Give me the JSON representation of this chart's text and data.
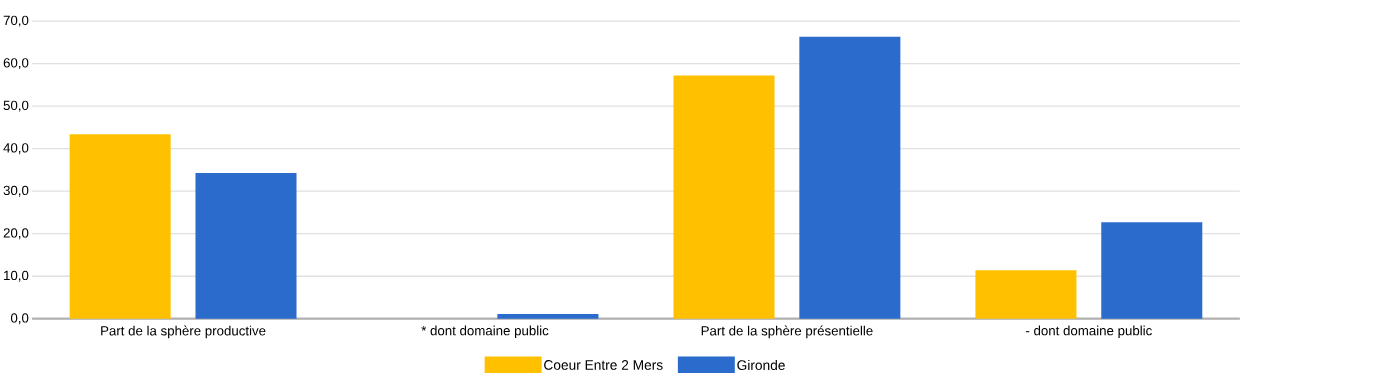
{
  "chart_data": {
    "type": "bar",
    "categories": [
      "Part de la sphère productive",
      "* dont domaine public",
      "Part de la sphère présentielle",
      "- dont domaine public"
    ],
    "series": [
      {
        "name": "Coeur Entre 2 Mers",
        "color": "#ffc000",
        "values": [
          43.4,
          0,
          57.2,
          11.4
        ]
      },
      {
        "name": "Gironde",
        "color": "#2a6bcc",
        "values": [
          34.3,
          1.1,
          66.3,
          22.7
        ]
      }
    ],
    "ylim": [
      0,
      70
    ],
    "yticks": [
      {
        "value": 0,
        "label": "0,0"
      },
      {
        "value": 10,
        "label": "10,0"
      },
      {
        "value": 20,
        "label": "20,0"
      },
      {
        "value": 30,
        "label": "30,0"
      },
      {
        "value": 40,
        "label": "40,0"
      },
      {
        "value": 50,
        "label": "50,0"
      },
      {
        "value": 60,
        "label": "60,0"
      },
      {
        "value": 70,
        "label": "70,0"
      }
    ],
    "grid": "y",
    "legend": "bottom"
  }
}
